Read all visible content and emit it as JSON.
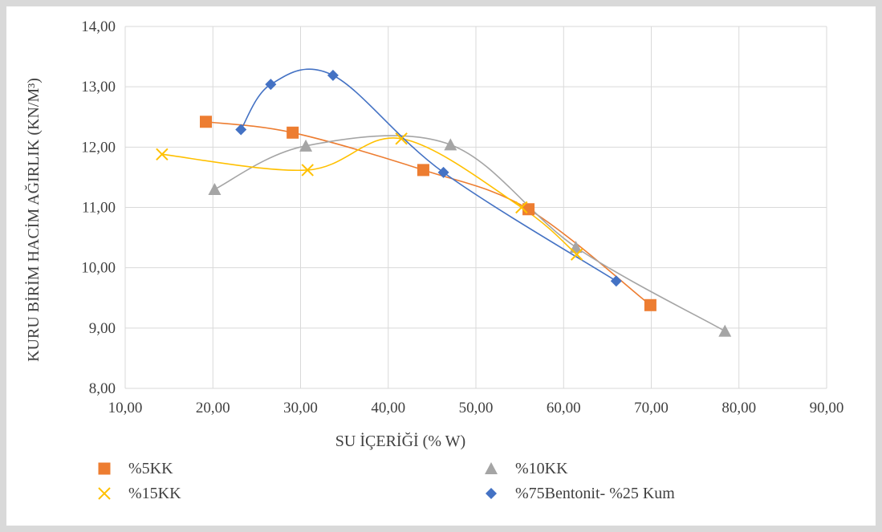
{
  "chart_data": {
    "type": "scatter",
    "title": "",
    "xlabel": "SU İÇERİĞİ (% W)",
    "ylabel": "KURU BİRİM HACİM AĞIRLIK (KN/M³)",
    "xlim": [
      10,
      90
    ],
    "ylim": [
      8,
      14
    ],
    "x_ticks": [
      "10,00",
      "20,00",
      "30,00",
      "40,00",
      "50,00",
      "60,00",
      "70,00",
      "80,00",
      "90,00"
    ],
    "y_ticks": [
      "8,00",
      "9,00",
      "10,00",
      "11,00",
      "12,00",
      "13,00",
      "14,00"
    ],
    "grid": true,
    "legend_position": "bottom",
    "smooth_lines": true,
    "series": [
      {
        "name": "%5KK",
        "marker": "square",
        "color": "#ED7D31",
        "points": [
          [
            19.2,
            12.42
          ],
          [
            29.1,
            12.24
          ],
          [
            44.0,
            11.62
          ],
          [
            56.0,
            10.97
          ],
          [
            69.9,
            9.38
          ]
        ]
      },
      {
        "name": "%10KK",
        "marker": "triangle",
        "color": "#A5A5A5",
        "points": [
          [
            20.2,
            11.3
          ],
          [
            30.6,
            12.02
          ],
          [
            47.1,
            12.04
          ],
          [
            61.4,
            10.34
          ],
          [
            78.4,
            8.95
          ]
        ]
      },
      {
        "name": "%15KK",
        "marker": "x",
        "color": "#FFC000",
        "points": [
          [
            14.2,
            11.88
          ],
          [
            30.8,
            11.62
          ],
          [
            41.5,
            12.14
          ],
          [
            55.2,
            11.0
          ],
          [
            61.5,
            10.22
          ]
        ]
      },
      {
        "name": "%75Bentonit- %25 Kum",
        "marker": "diamond",
        "color": "#4472C4",
        "points": [
          [
            23.2,
            12.29
          ],
          [
            26.6,
            13.04
          ],
          [
            33.7,
            13.19
          ],
          [
            46.3,
            11.58
          ],
          [
            66.0,
            9.78
          ]
        ]
      }
    ]
  }
}
